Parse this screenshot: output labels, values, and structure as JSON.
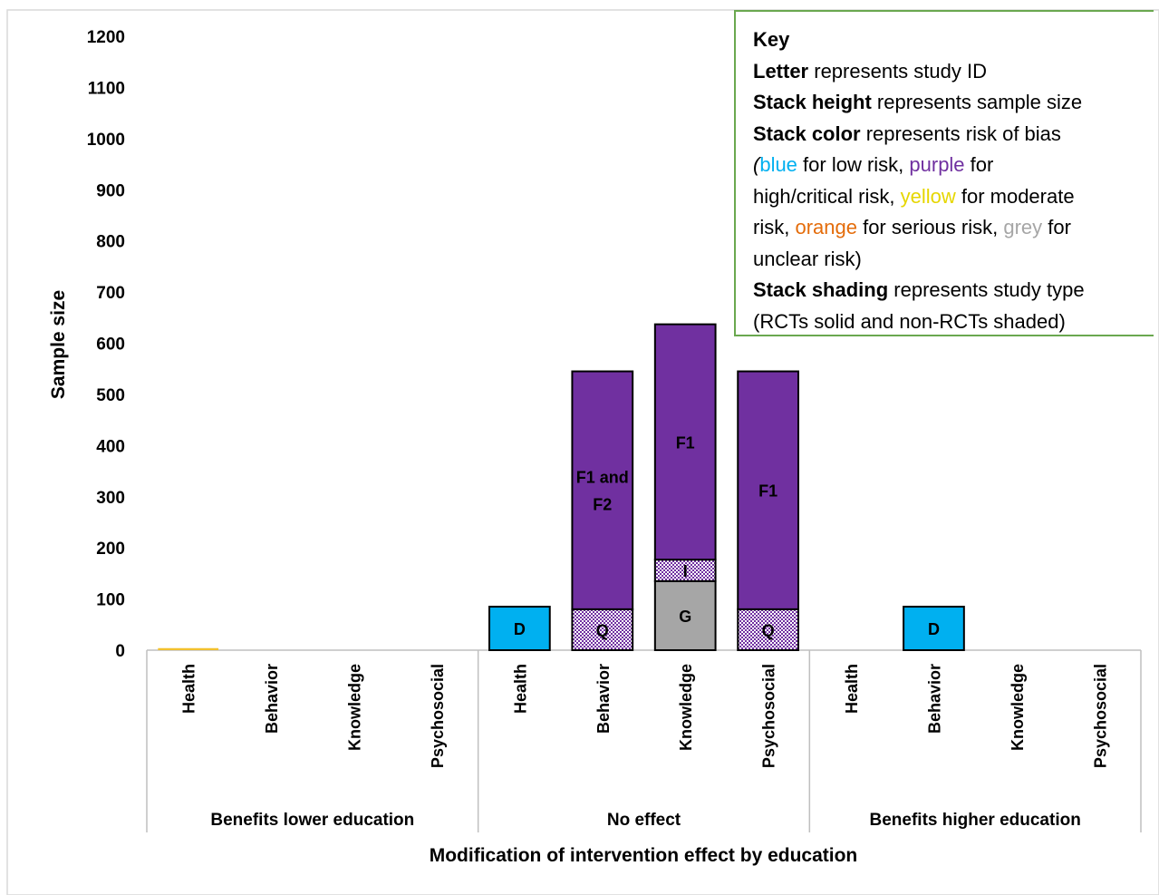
{
  "chart_data": {
    "type": "bar",
    "stacked": true,
    "title": "",
    "xlabel": "Modification of intervention effect by education",
    "ylabel": "Sample size",
    "ylim": [
      0,
      1200
    ],
    "yticks": [
      0,
      100,
      200,
      300,
      400,
      500,
      600,
      700,
      800,
      900,
      1000,
      1100,
      1200
    ],
    "grid": false,
    "groups": [
      {
        "name": "Benefits lower education",
        "categories": [
          "Health",
          "Behavior",
          "Knowledge",
          "Psychosocial"
        ]
      },
      {
        "name": "No effect",
        "categories": [
          "Health",
          "Behavior",
          "Knowledge",
          "Psychosocial"
        ]
      },
      {
        "name": "Benefits higher education",
        "categories": [
          "Health",
          "Behavior",
          "Knowledge",
          "Psychosocial"
        ]
      }
    ],
    "stacks": [
      {
        "group": 0,
        "category": 0,
        "segments": [
          {
            "label": "",
            "value": 4,
            "color": "#f2c12e",
            "shading": "solid"
          }
        ]
      },
      {
        "group": 1,
        "category": 0,
        "segments": [
          {
            "label": "D",
            "value": 85,
            "color": "#00b0f0",
            "shading": "solid"
          }
        ]
      },
      {
        "group": 1,
        "category": 1,
        "segments": [
          {
            "label": "Q",
            "value": 80,
            "color": "#7030a0",
            "shading": "hatched"
          },
          {
            "label": "F1 and F2",
            "value": 465,
            "color": "#7030a0",
            "shading": "solid"
          }
        ]
      },
      {
        "group": 1,
        "category": 2,
        "segments": [
          {
            "label": "G",
            "value": 135,
            "color": "#a6a6a6",
            "shading": "solid"
          },
          {
            "label": "I",
            "value": 42,
            "color": "#7030a0",
            "shading": "hatched"
          },
          {
            "label": "F1",
            "value": 460,
            "color": "#7030a0",
            "shading": "solid"
          }
        ]
      },
      {
        "group": 1,
        "category": 3,
        "segments": [
          {
            "label": "Q",
            "value": 80,
            "color": "#7030a0",
            "shading": "hatched"
          },
          {
            "label": "F1",
            "value": 465,
            "color": "#7030a0",
            "shading": "solid"
          }
        ]
      },
      {
        "group": 2,
        "category": 1,
        "segments": [
          {
            "label": "D",
            "value": 85,
            "color": "#00b0f0",
            "shading": "solid"
          }
        ]
      }
    ]
  },
  "key": {
    "title": "Key",
    "line1_bold": "Letter",
    "line1_rest": " represents study ID",
    "line2_bold": "Stack height",
    "line2_rest": " represents sample size",
    "line3_bold": "Stack color",
    "line3_rest": " represents risk of bias",
    "open_paren": "(",
    "blue": "blue",
    "t_low": " for low risk, ",
    "purple": "purple",
    "t_for": " for",
    "t_high": "high/critical risk, ",
    "yellow": "yellow",
    "t_moderate": " for moderate",
    "t_risk": "risk, ",
    "orange": "orange",
    "t_serious": " for serious risk, ",
    "grey": "grey",
    "t_for2": " for",
    "t_unclear": "unclear risk)",
    "line8_bold": "Stack shading",
    "line8_rest": " represents study type",
    "line9": "(RCTs solid and non-RCTs shaded)",
    "colors": {
      "border": "#6aa84f"
    }
  }
}
